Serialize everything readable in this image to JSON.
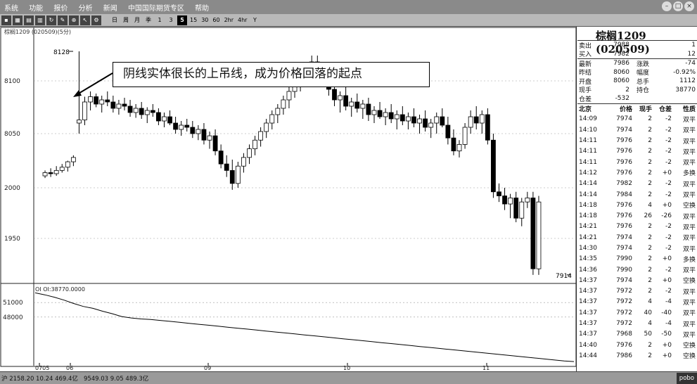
{
  "app": {
    "menu": [
      "系统",
      "功能",
      "报价",
      "分析",
      "新闻",
      "中国国际期货专区",
      "帮助"
    ],
    "toolbar_periods": [
      "日",
      "周",
      "月",
      "季",
      "1",
      "3",
      "5",
      "15",
      "30",
      "60",
      "2hr",
      "4hr",
      "Y"
    ],
    "active_period": "5"
  },
  "chart_header": "棕榈1209 (020509)(5分)",
  "annotation": "阴线实体很长的上吊线，成为价格回落的起点",
  "oi_header": "OI OI:38770.0000",
  "status": {
    "left": "沪 2158.20  10.24  469.4亿",
    "mid": "9549.03  9.05 489.3亿",
    "right": "pobo"
  },
  "quote": {
    "title": "棕榈1209 (020509)",
    "ask": {
      "label": "卖出",
      "price": "7988",
      "vol": "1"
    },
    "bid": {
      "label": "买入",
      "price": "7982",
      "vol": "12"
    },
    "rows": [
      {
        "l1": "最新",
        "v1": "7986",
        "l2": "涨跌",
        "v2": "-74"
      },
      {
        "l1": "昨结",
        "v1": "8060",
        "l2": "幅度",
        "v2": "-0.92%"
      },
      {
        "l1": "开盘",
        "v1": "8060",
        "l2": "总手",
        "v2": "1112"
      },
      {
        "l1": "现手",
        "v1": "2",
        "l2": "持仓",
        "v2": "38770"
      },
      {
        "l1": "仓差",
        "v1": "-532",
        "l2": "",
        "v2": ""
      }
    ],
    "tick_headers": [
      "北京",
      "价格",
      "现手",
      "仓差",
      "性质"
    ],
    "ticks": [
      [
        "14:09",
        "7974",
        "2",
        "-2",
        "双平"
      ],
      [
        "14:10",
        "7974",
        "2",
        "-2",
        "双平"
      ],
      [
        "14:11",
        "7976",
        "2",
        "-2",
        "双平"
      ],
      [
        "14:11",
        "7976",
        "2",
        "-2",
        "双平"
      ],
      [
        "14:11",
        "7976",
        "2",
        "-2",
        "双平"
      ],
      [
        "14:12",
        "7976",
        "2",
        "+0",
        "多换"
      ],
      [
        "14:14",
        "7982",
        "2",
        "-2",
        "双平"
      ],
      [
        "14:14",
        "7984",
        "2",
        "-2",
        "双平"
      ],
      [
        "14:18",
        "7976",
        "4",
        "+0",
        "空换"
      ],
      [
        "14:18",
        "7976",
        "26",
        "-26",
        "双平"
      ],
      [
        "14:21",
        "7976",
        "2",
        "-2",
        "双平"
      ],
      [
        "14:21",
        "7974",
        "2",
        "-2",
        "双平"
      ],
      [
        "14:30",
        "7974",
        "2",
        "-2",
        "双平"
      ],
      [
        "14:35",
        "7990",
        "2",
        "+0",
        "多换"
      ],
      [
        "14:36",
        "7990",
        "2",
        "-2",
        "双平"
      ],
      [
        "14:37",
        "7974",
        "2",
        "+0",
        "空换"
      ],
      [
        "14:37",
        "7972",
        "2",
        "-2",
        "双平"
      ],
      [
        "14:37",
        "7972",
        "4",
        "-4",
        "双平"
      ],
      [
        "14:37",
        "7972",
        "40",
        "-40",
        "双平"
      ],
      [
        "14:37",
        "7972",
        "4",
        "-4",
        "双平"
      ],
      [
        "14:37",
        "7968",
        "50",
        "-50",
        "双平"
      ],
      [
        "14:40",
        "7976",
        "2",
        "+0",
        "空换"
      ],
      [
        "14:44",
        "7986",
        "2",
        "+0",
        "空换"
      ]
    ]
  },
  "chart_data": {
    "type": "candlestick",
    "title": "棕榈1209 (020509)(5分)",
    "price_ylim": [
      1930,
      8145
    ],
    "price_ticks": [
      1950,
      2000,
      8050,
      8100
    ],
    "oi_ticks": [
      48000,
      51000
    ],
    "x_date_labels": [
      "0705",
      "06",
      "09",
      "10",
      "11"
    ],
    "labeled_high": 8128,
    "labeled_low": 7914,
    "candles": [
      [
        8011,
        8016,
        8009,
        8014
      ],
      [
        8014,
        8018,
        8010,
        8013
      ],
      [
        8013,
        8020,
        8011,
        8016
      ],
      [
        8016,
        8022,
        8014,
        8019
      ],
      [
        8019,
        8025,
        8015,
        8024
      ],
      [
        8024,
        8030,
        8020,
        8028
      ],
      [
        8060,
        8128,
        8050,
        8063
      ],
      [
        8063,
        8085,
        8058,
        8080
      ],
      [
        8080,
        8090,
        8072,
        8085
      ],
      [
        8085,
        8088,
        8075,
        8078
      ],
      [
        8078,
        8086,
        8070,
        8082
      ],
      [
        8082,
        8090,
        8076,
        8080
      ],
      [
        8080,
        8086,
        8070,
        8074
      ],
      [
        8074,
        8082,
        8068,
        8078
      ],
      [
        8078,
        8084,
        8072,
        8076
      ],
      [
        8076,
        8082,
        8066,
        8070
      ],
      [
        8070,
        8078,
        8065,
        8074
      ],
      [
        8074,
        8080,
        8064,
        8068
      ],
      [
        8068,
        8075,
        8060,
        8072
      ],
      [
        8072,
        8078,
        8066,
        8070
      ],
      [
        8070,
        8074,
        8058,
        8062
      ],
      [
        8062,
        8070,
        8056,
        8066
      ],
      [
        8066,
        8072,
        8058,
        8060
      ],
      [
        8060,
        8066,
        8050,
        8054
      ],
      [
        8054,
        8062,
        8048,
        8058
      ],
      [
        8058,
        8064,
        8052,
        8056
      ],
      [
        8056,
        8062,
        8046,
        8050
      ],
      [
        8050,
        8058,
        8044,
        8054
      ],
      [
        8054,
        8060,
        8040,
        8044
      ],
      [
        8044,
        8052,
        8036,
        8048
      ],
      [
        8048,
        8054,
        8030,
        8034
      ],
      [
        8034,
        8040,
        8018,
        8022
      ],
      [
        8022,
        8030,
        8010,
        8016
      ],
      [
        8016,
        8026,
        7998,
        8004
      ],
      [
        8004,
        8024,
        8000,
        8020
      ],
      [
        8020,
        8032,
        8014,
        8028
      ],
      [
        8028,
        8040,
        8022,
        8036
      ],
      [
        8036,
        8048,
        8030,
        8044
      ],
      [
        8044,
        8056,
        8038,
        8052
      ],
      [
        8052,
        8064,
        8046,
        8060
      ],
      [
        8060,
        8072,
        8054,
        8068
      ],
      [
        8068,
        8078,
        8060,
        8074
      ],
      [
        8074,
        8086,
        8068,
        8082
      ],
      [
        8082,
        8094,
        8074,
        8090
      ],
      [
        8090,
        8102,
        8084,
        8098
      ],
      [
        8098,
        8110,
        8090,
        8106
      ],
      [
        8106,
        8118,
        8098,
        8112
      ],
      [
        8112,
        8124,
        8104,
        8118
      ],
      [
        8118,
        8124,
        8098,
        8104
      ],
      [
        8104,
        8112,
        8094,
        8108
      ],
      [
        8108,
        8114,
        8086,
        8092
      ],
      [
        8092,
        8100,
        8076,
        8082
      ],
      [
        8082,
        8090,
        8070,
        8086
      ],
      [
        8086,
        8094,
        8072,
        8076
      ],
      [
        8076,
        8084,
        8066,
        8080
      ],
      [
        8080,
        8088,
        8070,
        8074
      ],
      [
        8074,
        8082,
        8064,
        8078
      ],
      [
        8078,
        8084,
        8062,
        8068
      ],
      [
        8068,
        8076,
        8060,
        8072
      ],
      [
        8072,
        8080,
        8064,
        8066
      ],
      [
        8066,
        8074,
        8058,
        8070
      ],
      [
        8070,
        8078,
        8060,
        8064
      ],
      [
        8064,
        8072,
        8054,
        8068
      ],
      [
        8068,
        8076,
        8058,
        8062
      ],
      [
        8062,
        8070,
        8054,
        8066
      ],
      [
        8066,
        8074,
        8056,
        8060
      ],
      [
        8060,
        8068,
        8050,
        8064
      ],
      [
        8064,
        8072,
        8052,
        8056
      ],
      [
        8056,
        8064,
        8046,
        8060
      ],
      [
        8060,
        8070,
        8050,
        8066
      ],
      [
        8066,
        8074,
        8056,
        8058
      ],
      [
        8058,
        8066,
        8040,
        8046
      ],
      [
        8046,
        8054,
        8030,
        8034
      ],
      [
        8034,
        8044,
        8028,
        8040
      ],
      [
        8040,
        8060,
        8036,
        8056
      ],
      [
        8056,
        8072,
        8050,
        8066
      ],
      [
        8066,
        8076,
        8054,
        8060
      ],
      [
        8060,
        8072,
        8050,
        8068
      ],
      [
        8068,
        8074,
        8040,
        8044
      ],
      [
        8044,
        8050,
        7990,
        7996
      ],
      [
        7996,
        8004,
        7986,
        7992
      ],
      [
        7992,
        8000,
        7978,
        7984
      ],
      [
        7984,
        7994,
        7970,
        7990
      ],
      [
        7990,
        7996,
        7966,
        7970
      ],
      [
        7970,
        7990,
        7962,
        7986
      ],
      [
        7986,
        7996,
        7980,
        7990
      ],
      [
        7990,
        7996,
        7914,
        7920
      ],
      [
        7920,
        7992,
        7914,
        7986
      ]
    ],
    "oi_values": [
      53000,
      52600,
      52100,
      51500,
      50800,
      50200,
      49800,
      49200,
      48700,
      48100,
      47800,
      47600,
      47500,
      47300,
      47100,
      46900,
      46700,
      46500,
      46300,
      46100,
      45900,
      45700,
      45500,
      45300,
      45100,
      44900,
      44700,
      44500,
      44300,
      44100,
      43900,
      43700,
      43500,
      43300,
      43100,
      42900,
      42700,
      42500,
      42300,
      42100,
      41900,
      41700,
      41500,
      41300,
      41100,
      40900,
      40700,
      40500,
      40300,
      40100,
      39900,
      39700,
      39500,
      39300,
      39100,
      38900,
      38770
    ]
  }
}
